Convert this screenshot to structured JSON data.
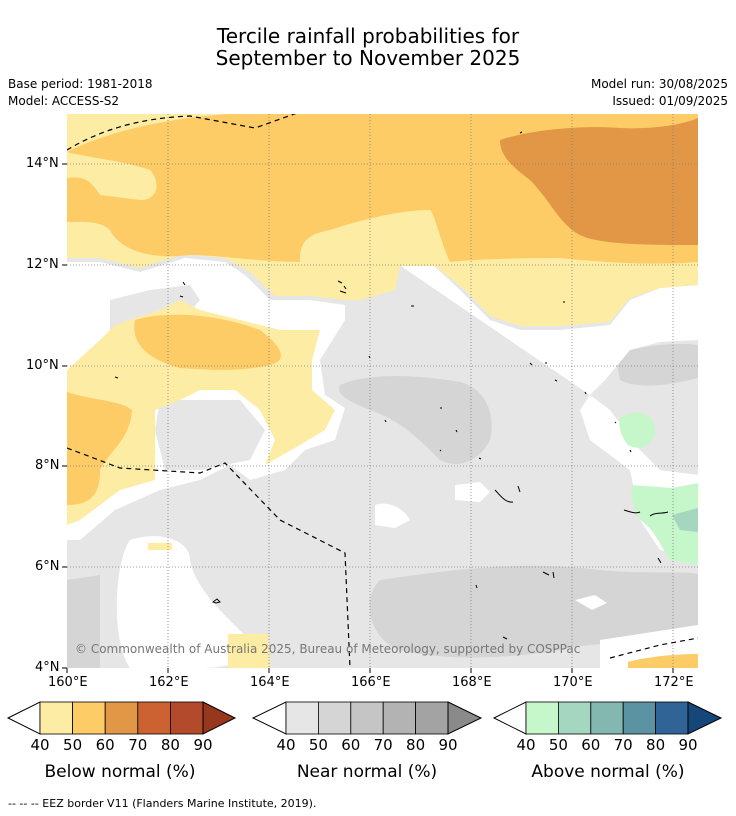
{
  "header": {
    "title_line1": "Tercile rainfall probabilities for",
    "title_line2": "September to November 2025",
    "base_period": "Base period: 1981-2018",
    "model": "Model: ACCESS-S2",
    "model_run": "Model run: 30/08/2025",
    "issued": "Issued: 01/09/2025"
  },
  "map": {
    "lat_labels": [
      "14°N",
      "12°N",
      "10°N",
      "8°N",
      "6°N",
      "4°N"
    ],
    "lon_labels": [
      "160°E",
      "162°E",
      "164°E",
      "166°E",
      "168°E",
      "170°E",
      "172°E"
    ],
    "copyright": "© Commonwealth of Australia 2025, Bureau of Meteorology, supported by COSPPac",
    "colors": {
      "below_50": "#fdeca3",
      "below_60": "#fdcc66",
      "below_70": "#e19745",
      "near_50": "#e6e6e6",
      "near_60": "#d5d5d5",
      "above_50": "#c6f7cb",
      "above_60": "#a5d6c0",
      "grid": "#7f7f7f",
      "eez": "#000000"
    }
  },
  "colorbars": [
    {
      "title": "Below normal (%)",
      "ticks": [
        "40",
        "50",
        "60",
        "70",
        "80",
        "90"
      ],
      "colors": [
        "#fdeca3",
        "#fdcc66",
        "#e19745",
        "#cc6231",
        "#b44a2c",
        "#96371e"
      ]
    },
    {
      "title": "Near normal (%)",
      "ticks": [
        "40",
        "50",
        "60",
        "70",
        "80",
        "90"
      ],
      "colors": [
        "#e6e6e6",
        "#d5d5d5",
        "#c5c5c5",
        "#b3b3b3",
        "#a3a3a3",
        "#8a8a8a"
      ]
    },
    {
      "title": "Above normal (%)",
      "ticks": [
        "40",
        "50",
        "60",
        "70",
        "80",
        "90"
      ],
      "colors": [
        "#c6f7cb",
        "#a5d6c0",
        "#83b8b0",
        "#5c93a2",
        "#306497",
        "#15477a"
      ]
    }
  ],
  "footnote": "--  --  -- EEZ border V11 (Flanders Marine Institute, 2019)."
}
